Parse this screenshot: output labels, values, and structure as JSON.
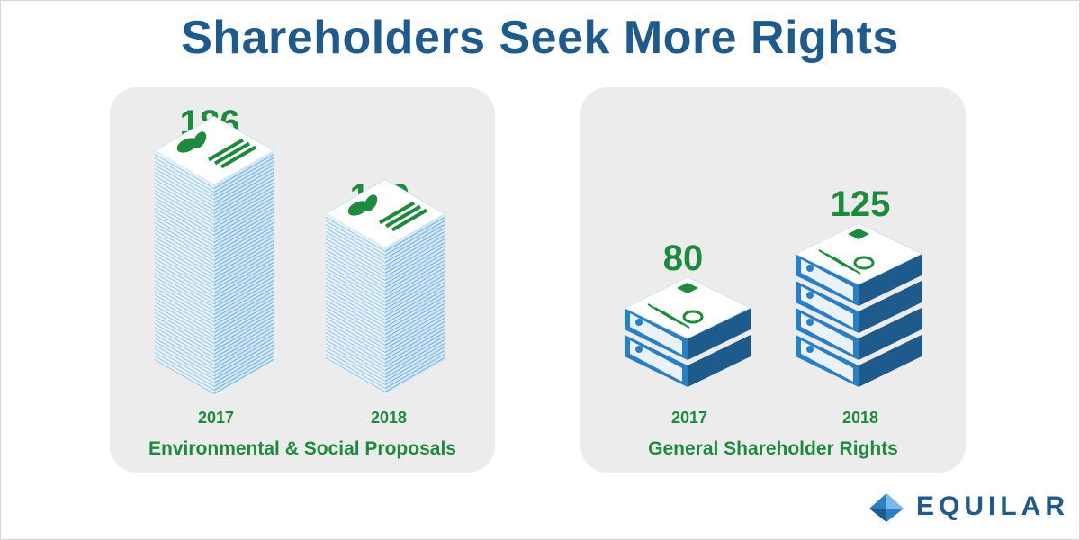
{
  "title": "Shareholders Seek More Rights",
  "brand": "EQUILAR",
  "colors": {
    "title": "#1f5a8c",
    "green": "#1e8a3e",
    "paper": "#ffffff",
    "paper_line": "#8fc3e6",
    "blue": "#2a7fc4",
    "panel": "#ececec"
  },
  "chart_data": [
    {
      "type": "bar",
      "title": "Environmental & Social Proposals",
      "categories": [
        "2017",
        "2018"
      ],
      "values": [
        186,
        130
      ],
      "icon": "leaf-document-icon"
    },
    {
      "type": "bar",
      "title": "General Shareholder Rights",
      "categories": [
        "2017",
        "2018"
      ],
      "values": [
        80,
        125
      ],
      "icon": "certificate-binder-icon"
    }
  ]
}
